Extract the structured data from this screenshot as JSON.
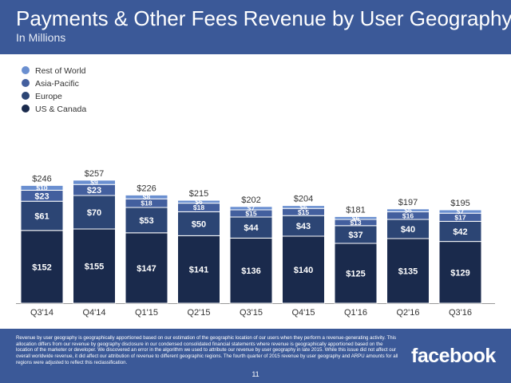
{
  "header": {
    "title": "Payments & Other Fees Revenue by User Geography",
    "subtitle": "In Millions"
  },
  "colors": {
    "header_bg": "#3b5998",
    "us_canada": "#1a2a4c",
    "europe": "#2c4574",
    "asia_pacific": "#435f9e",
    "rest_of_world": "#6a8fd0",
    "label_dark": "#333333"
  },
  "chart_data": {
    "type": "bar",
    "stacked": true,
    "title": "Payments & Other Fees Revenue by User Geography",
    "subtitle": "In Millions",
    "xlabel": "",
    "ylabel": "",
    "ylim": [
      0,
      260
    ],
    "grid": false,
    "legend": "top-left",
    "categories": [
      "Q3'14",
      "Q4'14",
      "Q1'15",
      "Q2'15",
      "Q3'15",
      "Q4'15",
      "Q1'16",
      "Q2'16",
      "Q3'16"
    ],
    "totals": [
      246,
      257,
      226,
      215,
      202,
      204,
      181,
      197,
      195
    ],
    "series": [
      {
        "name": "US & Canada",
        "color": "#1a2a4c",
        "values": [
          152,
          155,
          147,
          141,
          136,
          140,
          125,
          135,
          129
        ]
      },
      {
        "name": "Europe",
        "color": "#2c4574",
        "values": [
          61,
          70,
          53,
          50,
          44,
          43,
          37,
          40,
          42
        ]
      },
      {
        "name": "Asia-Pacific",
        "color": "#435f9e",
        "values": [
          23,
          23,
          18,
          18,
          15,
          15,
          13,
          16,
          17
        ]
      },
      {
        "name": "Rest of World",
        "color": "#6a8fd0",
        "values": [
          10,
          9,
          8,
          6,
          7,
          6,
          6,
          6,
          7
        ]
      }
    ]
  },
  "footer": {
    "note": "Revenue by user geography is geographically apportioned based on our estimation of the geographic location of our users when they perform a revenue-generating activity. This allocation differs from our revenue by geography disclosure in our condensed consolidated financial statements where revenue is geographically apportioned based on the location of the marketer or developer. We discovered an error in the algorithm we used to attribute our revenue by user geography in late 2015. While this issue did not affect our overall worldwide revenue, it did affect our attribution of revenue to different geographic regions. The fourth quarter of 2015 revenue by user geography and ARPU amounts for all regions were adjusted to reflect this reclassification.",
    "brand": "facebook",
    "page_number": "11"
  }
}
